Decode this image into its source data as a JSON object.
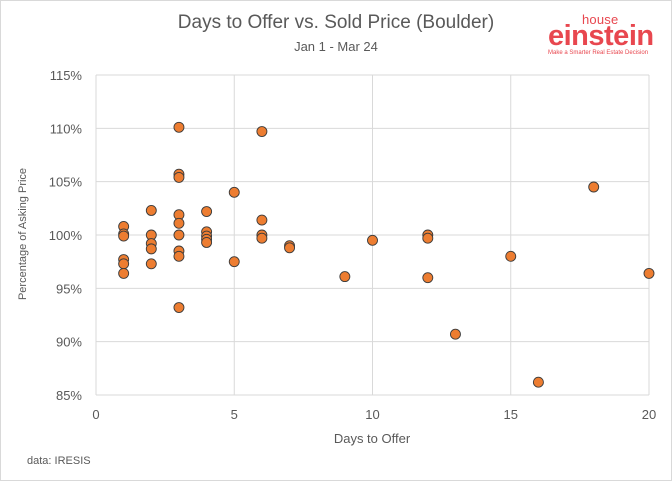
{
  "brand": {
    "small": "house",
    "main": "einstein",
    "tagline": "Make a Smarter Real Estate Decision",
    "color": "#e8474f"
  },
  "source_note": "data: IRESIS",
  "chart_data": {
    "type": "scatter",
    "title": "Days to Offer vs. Sold Price (Boulder)",
    "subtitle": "Jan 1 - Mar 24",
    "xlabel": "Days to Offer",
    "ylabel": "Percentage of Asking Price",
    "xlim": [
      0,
      20
    ],
    "ylim": [
      85,
      115
    ],
    "xticks": [
      0,
      5,
      10,
      15,
      20
    ],
    "yticks": [
      85,
      90,
      95,
      100,
      105,
      110,
      115
    ],
    "xtick_labels": [
      "0",
      "5",
      "10",
      "15",
      "20"
    ],
    "ytick_labels": [
      "85%",
      "90%",
      "95%",
      "100%",
      "105%",
      "110%",
      "115%"
    ],
    "grid": true,
    "marker_color": "#ed7d31",
    "points": [
      [
        1,
        100.8
      ],
      [
        1,
        100.1
      ],
      [
        1,
        99.9
      ],
      [
        1,
        97.7
      ],
      [
        1,
        97.3
      ],
      [
        1,
        96.4
      ],
      [
        2,
        102.3
      ],
      [
        2,
        100.0
      ],
      [
        2,
        99.2
      ],
      [
        2,
        98.7
      ],
      [
        2,
        97.3
      ],
      [
        3,
        110.1
      ],
      [
        3,
        105.7
      ],
      [
        3,
        105.4
      ],
      [
        3,
        101.9
      ],
      [
        3,
        101.1
      ],
      [
        3,
        100.0
      ],
      [
        3,
        98.5
      ],
      [
        3,
        98.0
      ],
      [
        3,
        93.2
      ],
      [
        4,
        102.2
      ],
      [
        4,
        100.3
      ],
      [
        4,
        99.9
      ],
      [
        4,
        99.6
      ],
      [
        4,
        99.3
      ],
      [
        5,
        104.0
      ],
      [
        5,
        97.5
      ],
      [
        6,
        109.7
      ],
      [
        6,
        101.4
      ],
      [
        6,
        100.0
      ],
      [
        6,
        99.7
      ],
      [
        7,
        99.0
      ],
      [
        7,
        98.8
      ],
      [
        9,
        96.1
      ],
      [
        10,
        99.5
      ],
      [
        12,
        100.0
      ],
      [
        12,
        99.7
      ],
      [
        12,
        96.0
      ],
      [
        13,
        90.7
      ],
      [
        15,
        98.0
      ],
      [
        16,
        86.2
      ],
      [
        18,
        104.5
      ],
      [
        20,
        96.4
      ]
    ]
  }
}
